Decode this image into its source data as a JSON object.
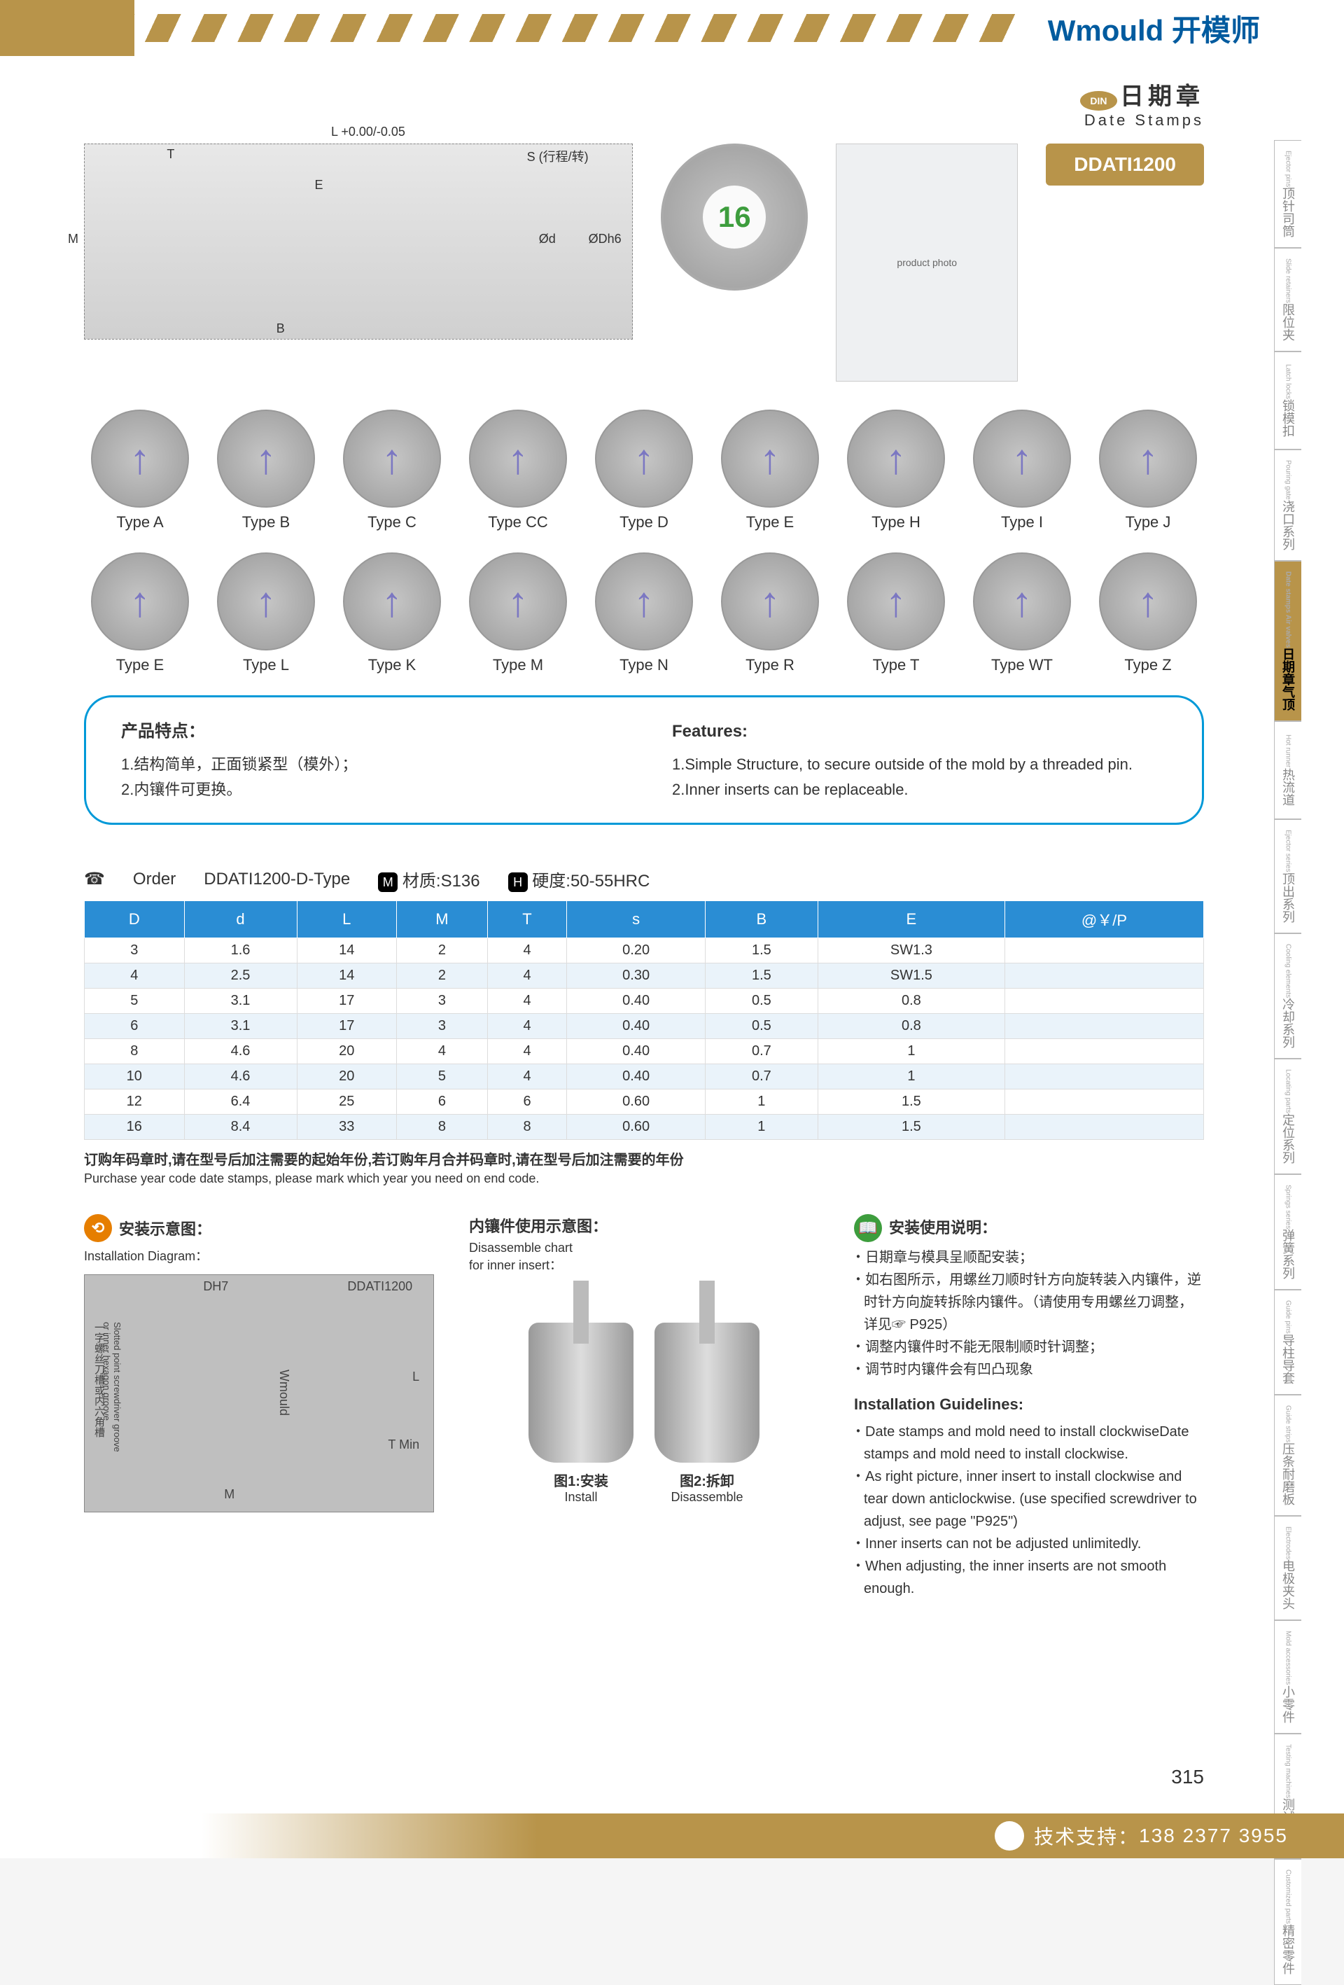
{
  "brand": {
    "en": "Wmould",
    "cn": " 开模师"
  },
  "title": {
    "din": "DIN",
    "cn": "日期章",
    "en": "Date Stamps",
    "code": "DDATI1200"
  },
  "tech_dims": {
    "L": "L +0.00/-0.05",
    "T": "T",
    "S": "S (行程/转)",
    "M": "M",
    "B": "B",
    "E": "E",
    "phi_d": "Ød",
    "phi_Dh6": "ØDh6",
    "center_num": "16"
  },
  "dials_row1": [
    {
      "label": "Type A"
    },
    {
      "label": "Type B"
    },
    {
      "label": "Type C"
    },
    {
      "label": "Type CC"
    },
    {
      "label": "Type D"
    },
    {
      "label": "Type E"
    },
    {
      "label": "Type H"
    },
    {
      "label": "Type I"
    },
    {
      "label": "Type J"
    }
  ],
  "dials_row2": [
    {
      "label": "Type E"
    },
    {
      "label": "Type L"
    },
    {
      "label": "Type K"
    },
    {
      "label": "Type M"
    },
    {
      "label": "Type N"
    },
    {
      "label": "Type R"
    },
    {
      "label": "Type T"
    },
    {
      "label": "Type WT"
    },
    {
      "label": "Type Z"
    }
  ],
  "features": {
    "cn_head": "产品特点：",
    "cn_1": "1.结构简单，正面锁紧型（模外）；",
    "cn_2": "2.内镶件可更换。",
    "en_head": "Features:",
    "en_1": "1.Simple Structure, to secure outside of the mold by a threaded pin.",
    "en_2": "2.Inner inserts can be replaceable."
  },
  "order": {
    "label": "Order",
    "code": "DDATI1200-D-Type",
    "mat_icon": "M",
    "mat": "材质:S136",
    "hard_icon": "H",
    "hard": "硬度:50-55HRC"
  },
  "table": {
    "headers": [
      "D",
      "d",
      "L",
      "M",
      "T",
      "s",
      "B",
      "E",
      "@￥/P"
    ],
    "rows": [
      [
        "3",
        "1.6",
        "14",
        "2",
        "4",
        "0.20",
        "1.5",
        "SW1.3",
        ""
      ],
      [
        "4",
        "2.5",
        "14",
        "2",
        "4",
        "0.30",
        "1.5",
        "SW1.5",
        ""
      ],
      [
        "5",
        "3.1",
        "17",
        "3",
        "4",
        "0.40",
        "0.5",
        "0.8",
        ""
      ],
      [
        "6",
        "3.1",
        "17",
        "3",
        "4",
        "0.40",
        "0.5",
        "0.8",
        ""
      ],
      [
        "8",
        "4.6",
        "20",
        "4",
        "4",
        "0.40",
        "0.7",
        "1",
        ""
      ],
      [
        "10",
        "4.6",
        "20",
        "5",
        "4",
        "0.40",
        "0.7",
        "1",
        ""
      ],
      [
        "12",
        "6.4",
        "25",
        "6",
        "6",
        "0.60",
        "1",
        "1.5",
        ""
      ],
      [
        "16",
        "8.4",
        "33",
        "8",
        "8",
        "0.60",
        "1",
        "1.5",
        ""
      ]
    ]
  },
  "note": {
    "cn": "订购年码章时,请在型号后加注需要的起始年份,若订购年月合并码章时,请在型号后加注需要的年份",
    "en": "Purchase year code date stamps, please mark which year you need on end code."
  },
  "install": {
    "head_cn": "安装示意图：",
    "head_en": "Installation Diagram：",
    "dh7": "DH7",
    "code_lbl": "DDATI1200",
    "brand_vert": "Wmould",
    "L": "L",
    "TMin": "T Min",
    "M": "M",
    "side_cn": "一字螺丝刀槽或内六角槽",
    "side_en": "Slotted point screwdriver groove\nor inner hexagon groove"
  },
  "insert": {
    "head_cn": "内镶件使用示意图：",
    "head_en": "Disassemble chart\nfor inner insert：",
    "fig1_cn": "图1:安装",
    "fig1_en": "Install",
    "fig2_cn": "图2:拆卸",
    "fig2_en": "Disassemble"
  },
  "guide": {
    "head_cn": "安装使用说明：",
    "cn_items": [
      "日期章与模具呈顺配安装；",
      "如右图所示，用螺丝刀顺时针方向旋转装入内镶件，逆时针方向旋转拆除内镶件。（请使用专用螺丝刀调整，详见☞ P925）",
      "调整内镶件时不能无限制顺时针调整；",
      "调节时内镶件会有凹凸现象"
    ],
    "head_en": "Installation Guidelines:",
    "en_items": [
      "Date stamps and mold need to install clockwiseDate stamps and mold need to install clockwise.",
      "As right picture, inner insert to install clockwise and tear down anticlockwise. (use specified screwdriver to adjust, see page \"P925\")",
      "Inner inserts can not be adjusted unlimitedly.",
      "When adjusting, the inner inserts are not smooth enough."
    ]
  },
  "side_tabs": [
    {
      "cn": "顶针司筒",
      "en": "Ejector pins"
    },
    {
      "cn": "限位夹",
      "en": "Slide retainers"
    },
    {
      "cn": "锁模扣",
      "en": "Latch locks"
    },
    {
      "cn": "浇口系列",
      "en": "Pouring gate"
    },
    {
      "cn": "日期章气顶",
      "en": "Date stamps Air valves",
      "active": true
    },
    {
      "cn": "热流道",
      "en": "Hot runner"
    },
    {
      "cn": "顶出系列",
      "en": "Ejector series"
    },
    {
      "cn": "冷却系列",
      "en": "Cooling elements"
    },
    {
      "cn": "定位系列",
      "en": "Locating parts"
    },
    {
      "cn": "弹簧系列",
      "en": "Springs series"
    },
    {
      "cn": "导柱导套",
      "en": "Guide pins"
    },
    {
      "cn": "压条耐磨板",
      "en": "Guide strips"
    },
    {
      "cn": "电极夹头",
      "en": "Electrodes"
    },
    {
      "cn": "小零件",
      "en": "Mold accessories"
    },
    {
      "cn": "测试机械",
      "en": "Testing machines"
    },
    {
      "cn": "精密零件",
      "en": "Customized parts"
    }
  ],
  "page_num": "315",
  "footer": {
    "label": "技术支持：",
    "phone": "138 2377 3955"
  }
}
